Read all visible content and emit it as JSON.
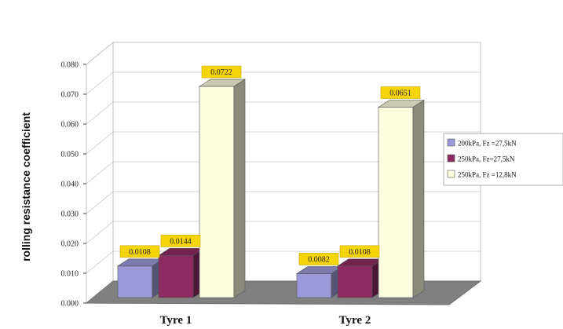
{
  "chart_data": {
    "type": "bar",
    "ylabel": "rolling resistance coefficient",
    "xlabel": "",
    "categories": [
      "Tyre 1",
      "Tyre 2"
    ],
    "ylim": [
      0,
      0.08
    ],
    "yticks": [
      "0.000",
      "0.010",
      "0.020",
      "0.030",
      "0.040",
      "0.050",
      "0.060",
      "0.070",
      "0.080"
    ],
    "grid": true,
    "legend_position": "right",
    "series": [
      {
        "name": "200kPa, Fz =27,5kN",
        "color": "#9a9ad8",
        "values": [
          0.0108,
          0.0082
        ],
        "labels": [
          "0.0108",
          "0.0082"
        ]
      },
      {
        "name": "250kPa, Fz=27,5kN",
        "color": "#8e2a62",
        "values": [
          0.0144,
          0.0108
        ],
        "labels": [
          "0.0144",
          "0.0108"
        ]
      },
      {
        "name": "250kPa, Fz =12,8kN",
        "color": "#fdfde0",
        "values": [
          0.0722,
          0.0651
        ],
        "labels": [
          "0.0722",
          "0.0651"
        ]
      }
    ]
  }
}
